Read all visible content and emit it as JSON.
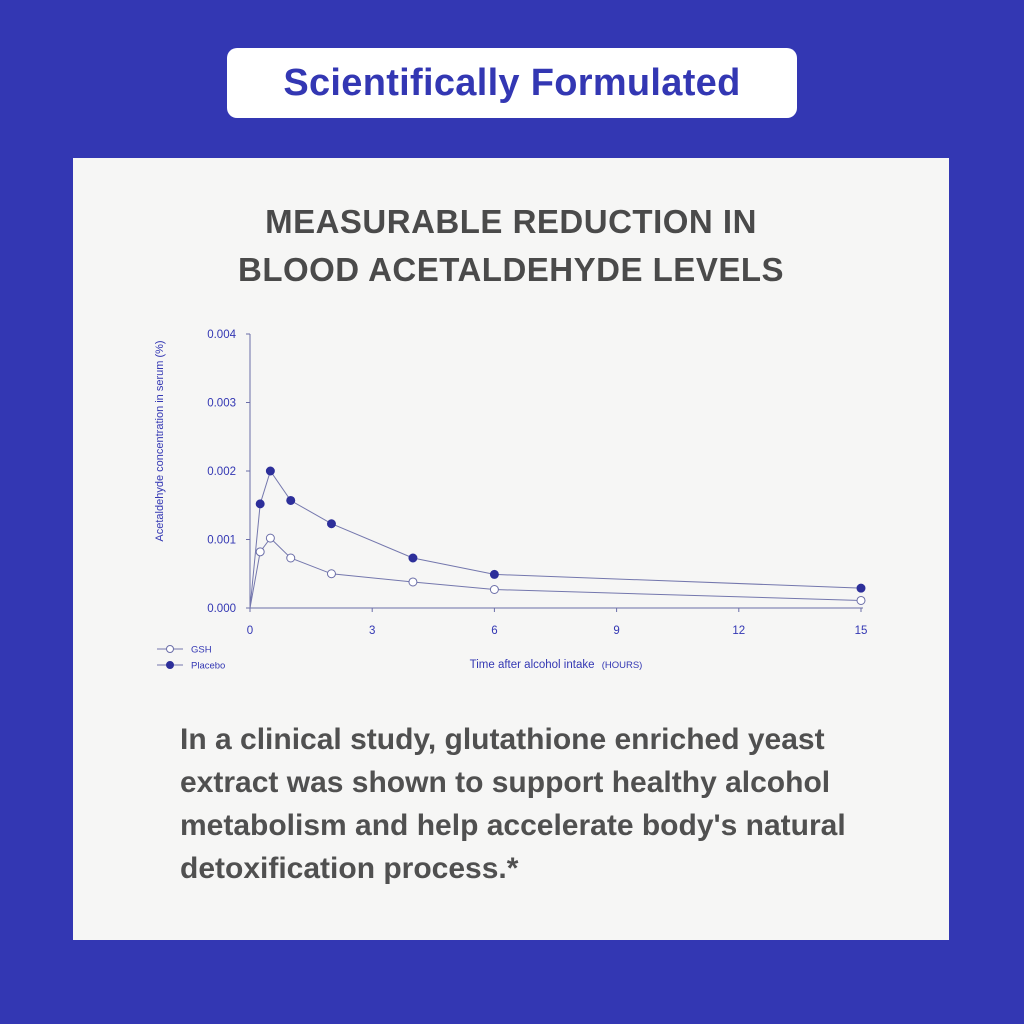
{
  "badge": {
    "label": "Scientifically Formulated"
  },
  "card": {
    "title_line1": "MEASURABLE REDUCTION IN",
    "title_line2": "BLOOD ACETALDEHYDE LEVELS",
    "body_text": "In a clinical study, glutathione enriched yeast extract was shown to support healthy alcohol metabolism and help accelerate body's natural detoxification process.*"
  },
  "colors": {
    "background": "#3337b3",
    "card": "#f6f6f5",
    "axis": "#6b6ea8",
    "placebo": "#2d2f9a",
    "gsh_fill": "#ffffff"
  },
  "chart_data": {
    "type": "line",
    "ylabel": "Acetaldehyde concentration in serum (%)",
    "xlabel": "Time after alcohol intake",
    "xlabel_unit": "(HOURS)",
    "xlim": [
      0,
      15
    ],
    "ylim": [
      0,
      0.004
    ],
    "x_ticks": [
      "0",
      "3",
      "6",
      "9",
      "12",
      "15"
    ],
    "x_tick_values": [
      0,
      3,
      6,
      9,
      12,
      15
    ],
    "y_ticks": [
      "0.000",
      "0.001",
      "0.002",
      "0.003",
      "0.004"
    ],
    "y_tick_values": [
      0,
      0.001,
      0.002,
      0.003,
      0.004
    ],
    "grid": false,
    "legend_position": "bottom-left",
    "series": [
      {
        "name": "GSH",
        "marker": "open-circle",
        "x": [
          0,
          0.25,
          0.5,
          1,
          2,
          4,
          6,
          15
        ],
        "y": [
          0,
          0.00082,
          0.00102,
          0.00073,
          0.0005,
          0.00038,
          0.00027,
          0.00011
        ]
      },
      {
        "name": "Placebo",
        "marker": "filled-circle",
        "x": [
          0,
          0.25,
          0.5,
          1,
          2,
          4,
          6,
          15
        ],
        "y": [
          0,
          0.00152,
          0.002,
          0.00157,
          0.00123,
          0.00073,
          0.00049,
          0.00029
        ]
      }
    ]
  }
}
